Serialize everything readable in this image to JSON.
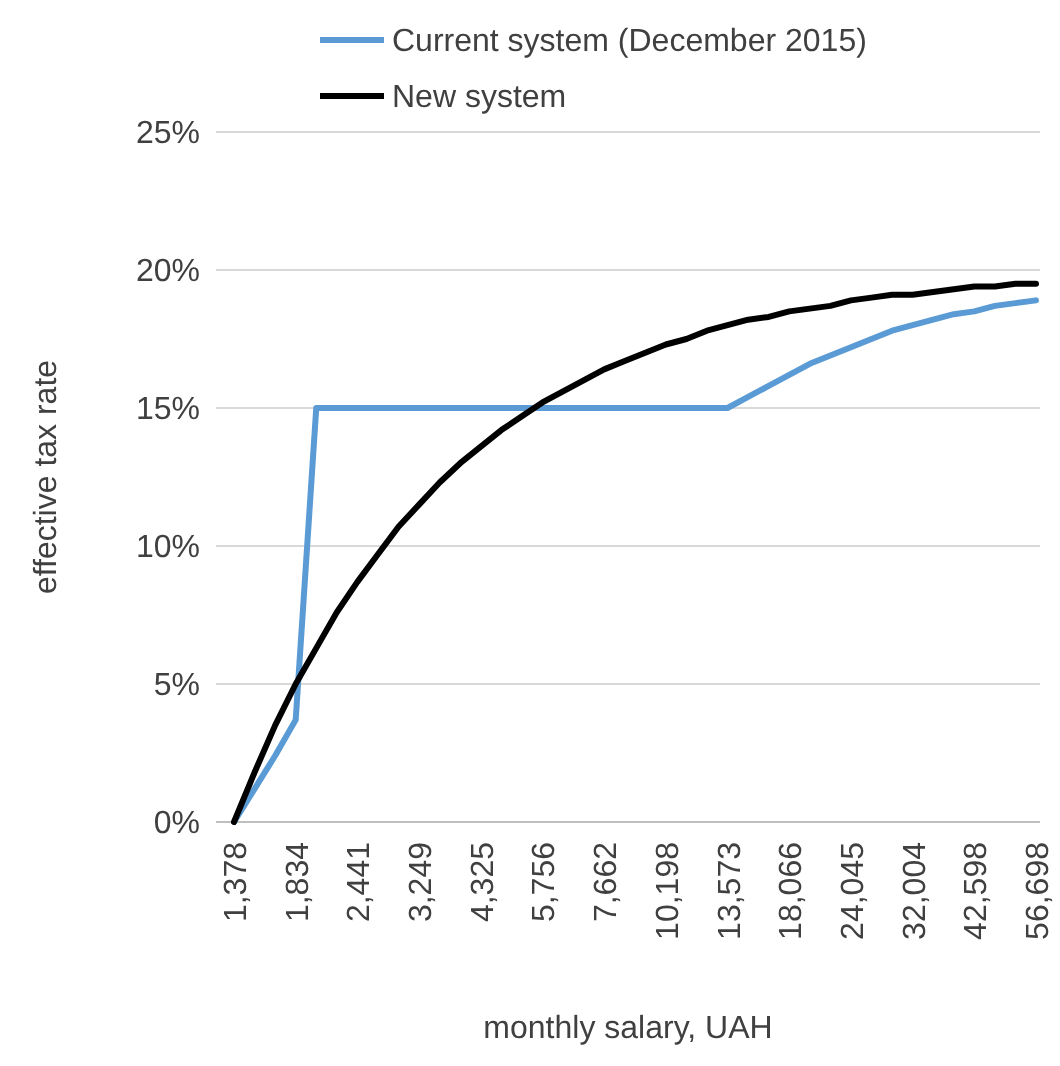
{
  "chart_data": {
    "type": "line",
    "xlabel": "monthly salary, UAH",
    "ylabel": "effective tax rate",
    "categories": [
      "1,378",
      null,
      null,
      "1,834",
      null,
      null,
      "2,441",
      null,
      null,
      "3,249",
      null,
      null,
      "4,325",
      null,
      null,
      "5,756",
      null,
      null,
      "7,662",
      null,
      null,
      "10,198",
      null,
      null,
      "13,573",
      null,
      null,
      "18,066",
      null,
      null,
      "24,045",
      null,
      null,
      "32,004",
      null,
      null,
      "42,598",
      null,
      null,
      "56,698"
    ],
    "series": [
      {
        "name": "Current system (December 2015)",
        "color": "#5b9bd5",
        "values": [
          0,
          1.2,
          2.4,
          3.7,
          15,
          15,
          15,
          15,
          15,
          15,
          15,
          15,
          15,
          15,
          15,
          15,
          15,
          15,
          15,
          15,
          15,
          15,
          15,
          15,
          15,
          15.4,
          15.8,
          16.2,
          16.6,
          16.9,
          17.2,
          17.5,
          17.8,
          18.0,
          18.2,
          18.4,
          18.5,
          18.7,
          18.8,
          18.9
        ]
      },
      {
        "name": "New system",
        "color": "#000000",
        "values": [
          0,
          1.8,
          3.5,
          5.0,
          6.3,
          7.6,
          8.7,
          9.7,
          10.7,
          11.5,
          12.3,
          13.0,
          13.6,
          14.2,
          14.7,
          15.2,
          15.6,
          16.0,
          16.4,
          16.7,
          17.0,
          17.3,
          17.5,
          17.8,
          18.0,
          18.2,
          18.3,
          18.5,
          18.6,
          18.7,
          18.9,
          19.0,
          19.1,
          19.1,
          19.2,
          19.3,
          19.4,
          19.4,
          19.5,
          19.5
        ]
      }
    ],
    "ylim": [
      0,
      25
    ],
    "yticks": [
      {
        "value": 0,
        "label": "0%"
      },
      {
        "value": 5,
        "label": "5%"
      },
      {
        "value": 10,
        "label": "10%"
      },
      {
        "value": 15,
        "label": "15%"
      },
      {
        "value": 20,
        "label": "20%"
      },
      {
        "value": 25,
        "label": "25%"
      }
    ],
    "grid": "y",
    "legend": "top",
    "marker": "none",
    "line_style": "solid"
  }
}
